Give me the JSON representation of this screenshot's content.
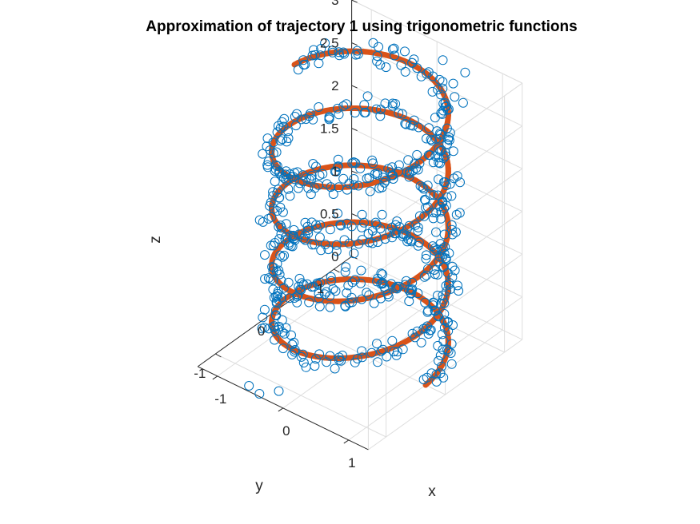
{
  "chart_data": {
    "type": "scatter",
    "title": "Approximation of trajectory 1 using trigonometric functions",
    "xlabel": "x",
    "ylabel": "y",
    "zlabel": "z",
    "xlim": [
      -1.3,
      1.3
    ],
    "ylim": [
      -1.3,
      1.3
    ],
    "zlim": [
      0,
      3
    ],
    "x_ticks": [
      "-1",
      "0",
      "1"
    ],
    "y_ticks": [
      "-1",
      "0",
      "1"
    ],
    "z_ticks": [
      "0",
      "0.5",
      "1",
      "1.5",
      "2",
      "2.5",
      "3"
    ],
    "grid": true,
    "colors": {
      "measured": "#0072BD",
      "approximation": "#D95319",
      "axis": "#262626",
      "grid": "#dedede"
    },
    "series": [
      {
        "marker": "circle-open",
        "description_values": "noisy helical trajectory samples",
        "turns": 4.5,
        "radius": 1.0,
        "z_range": [
          0,
          3
        ],
        "noise": 0.12,
        "count": 620,
        "end_excursion": [
          [
            0.15,
            0.6,
            3.05
          ],
          [
            0.45,
            0.9,
            3.15
          ],
          [
            0.7,
            1.0,
            3.05
          ],
          [
            0.85,
            0.8,
            2.85
          ]
        ],
        "start_excursion": [
          [
            -0.2,
            -1.15,
            0.05
          ],
          [
            -0.45,
            -1.2,
            -0.05
          ],
          [
            -0.7,
            -1.1,
            -0.1
          ]
        ]
      },
      {
        "marker": "thick-line",
        "description_values": "trigonometric approximation helix",
        "turns": 4.5,
        "radius": 1.0,
        "z_range": [
          0,
          3
        ]
      }
    ]
  }
}
